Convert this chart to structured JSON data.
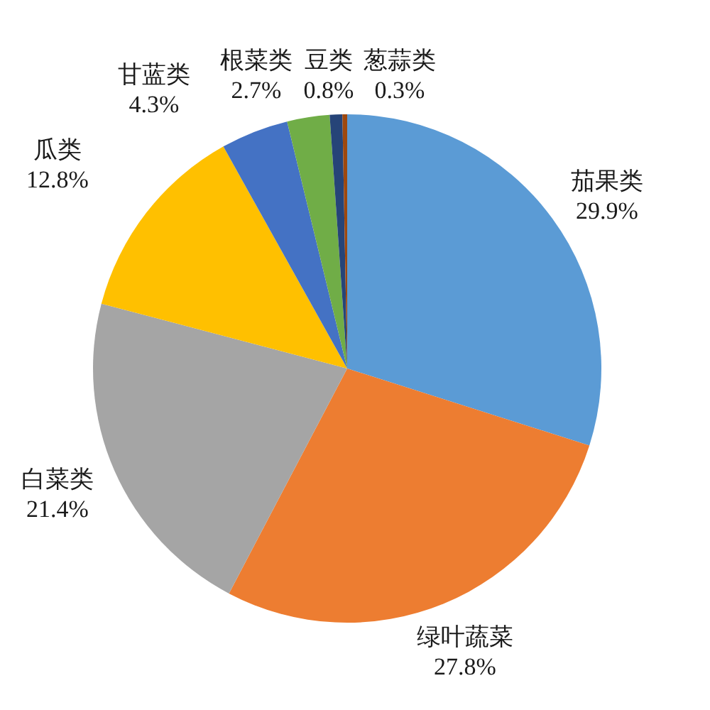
{
  "chart_data": {
    "type": "pie",
    "categories": [
      "茄果类",
      "绿叶蔬菜",
      "白菜类",
      "瓜类",
      "甘蓝类",
      "根菜类",
      "豆类",
      "葱蒜类"
    ],
    "values": [
      29.9,
      27.8,
      21.4,
      12.8,
      4.3,
      2.7,
      0.8,
      0.3
    ],
    "colors": [
      "#5b9bd5",
      "#ed7d31",
      "#a5a5a5",
      "#ffc000",
      "#4472c4",
      "#70ad47",
      "#264478",
      "#9e480e"
    ],
    "value_labels": [
      "29.9%",
      "27.8%",
      "21.4%",
      "12.8%",
      "4.3%",
      "2.7%",
      "0.8%",
      "0.3%"
    ]
  }
}
